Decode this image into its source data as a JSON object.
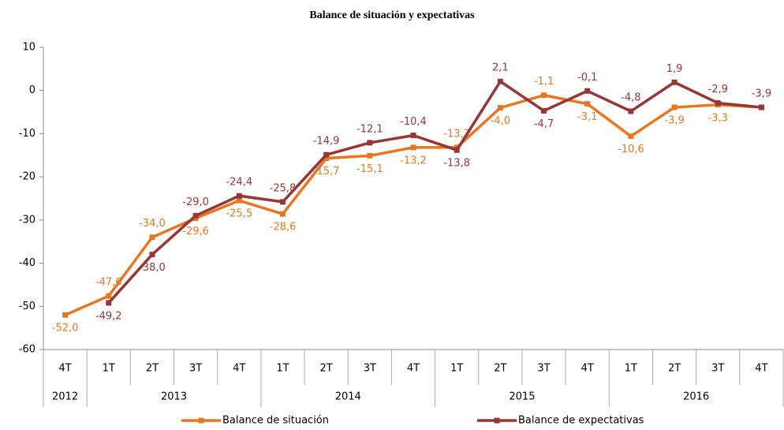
{
  "chart_data": {
    "type": "line",
    "title": "Balance de situación y expectativas",
    "categories": [
      "4T",
      "1T",
      "2T",
      "3T",
      "4T",
      "1T",
      "2T",
      "3T",
      "4T",
      "1T",
      "2T",
      "3T",
      "4T",
      "1T",
      "2T",
      "3T",
      "4T"
    ],
    "year_groups": [
      {
        "name": "2012",
        "span": 1
      },
      {
        "name": "2013",
        "span": 4
      },
      {
        "name": "2014",
        "span": 4
      },
      {
        "name": "2015",
        "span": 4
      },
      {
        "name": "2016",
        "span": 4
      }
    ],
    "series": [
      {
        "name": "Balance de situación",
        "color": "#e87722",
        "values": [
          -52.0,
          -47.6,
          -34.0,
          -29.6,
          -25.5,
          -28.6,
          -15.7,
          -15.1,
          -13.2,
          -13.2,
          -4.0,
          -1.1,
          -3.1,
          -10.6,
          -3.9,
          -3.3,
          -3.9
        ],
        "value_labels": [
          "-52,0",
          "-47,6",
          "-34,0",
          "-29,6",
          "-25,5",
          "-28,6",
          "-15,7",
          "-15,1",
          "-13,2",
          "-13,2",
          "-4,0",
          "-1,1",
          "-3,1",
          "-10,6",
          "-3,9",
          "-3,3",
          null
        ]
      },
      {
        "name": "Balance de expectativas",
        "color": "#953735",
        "values": [
          null,
          -49.2,
          -38.0,
          -29.0,
          -24.4,
          -25.8,
          -14.9,
          -12.1,
          -10.4,
          -13.8,
          2.1,
          -4.7,
          -0.1,
          -4.8,
          1.9,
          -2.9,
          -3.9
        ],
        "value_labels": [
          null,
          "-49,2",
          "-38,0",
          "-29,0",
          "-24,4",
          "-25,8",
          "-14,9",
          "-12,1",
          "-10,4",
          "-13,8",
          "2,1",
          "-4,7",
          "-0,1",
          "-4,8",
          "1,9",
          "-2,9",
          "-3,9"
        ]
      }
    ],
    "ylim": [
      -60,
      10
    ],
    "yticks": [
      -60,
      -50,
      -40,
      -30,
      -20,
      -10,
      0,
      10
    ],
    "grid": false
  }
}
